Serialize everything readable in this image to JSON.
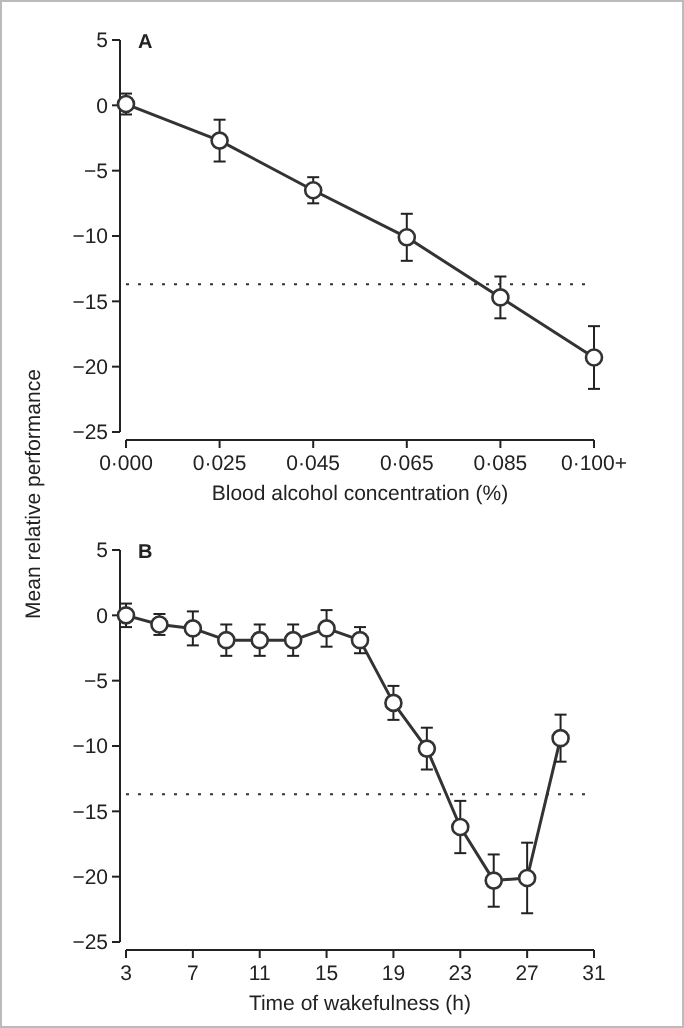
{
  "chart_data": [
    {
      "type": "line",
      "title": "A",
      "xlabel": "Blood alcohol concentration (%)",
      "ylabel": "Mean relative performance",
      "categories": [
        "0·000",
        "0·025",
        "0·045",
        "0·065",
        "0·085",
        "0·100+"
      ],
      "ylim": [
        -25,
        5
      ],
      "yticks": [
        -25,
        -20,
        -15,
        -10,
        -5,
        0,
        5
      ],
      "series": [
        {
          "color": "#333333",
          "values": [
            0.1,
            -2.7,
            -6.5,
            -10.1,
            -14.7,
            -19.3
          ],
          "errors": [
            0.8,
            1.6,
            1.0,
            1.8,
            1.6,
            2.4
          ]
        }
      ],
      "marker": "circle",
      "line_style": "solid",
      "ref_lines": [
        {
          "axis": "y",
          "value": -13.7,
          "line_style": "dotted",
          "color": "#333333"
        }
      ]
    },
    {
      "type": "line",
      "title": "B",
      "xlabel": "Time of wakefulness (h)",
      "x": [
        3,
        5,
        7,
        9,
        11,
        13,
        15,
        17,
        19,
        21,
        23,
        25,
        27,
        29
      ],
      "xlim": [
        3,
        31
      ],
      "xticks": [
        3,
        7,
        11,
        15,
        19,
        23,
        27,
        31
      ],
      "ylim": [
        -25,
        5
      ],
      "yticks": [
        -25,
        -20,
        -15,
        -10,
        -5,
        0,
        5
      ],
      "series": [
        {
          "color": "#333333",
          "values": [
            0,
            -0.7,
            -1.0,
            -1.9,
            -1.9,
            -1.9,
            -1.0,
            -1.9,
            -6.7,
            -10.2,
            -16.2,
            -20.3,
            -20.1,
            -9.4
          ],
          "errors": [
            0.9,
            0.8,
            1.3,
            1.2,
            1.2,
            1.2,
            1.4,
            1.0,
            1.3,
            1.6,
            2.0,
            2.0,
            2.7,
            1.8
          ]
        }
      ],
      "marker": "circle",
      "line_style": "solid",
      "ref_lines": [
        {
          "axis": "y",
          "value": -13.7,
          "line_style": "dotted",
          "color": "#333333"
        }
      ]
    }
  ]
}
